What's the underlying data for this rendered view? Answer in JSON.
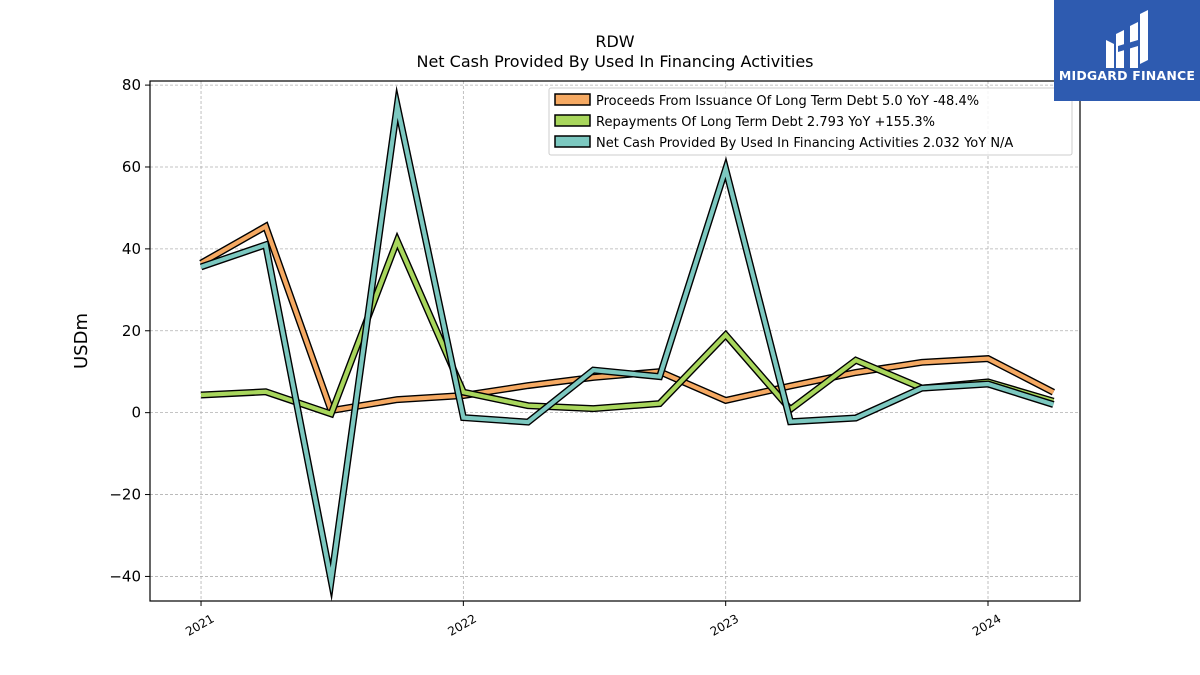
{
  "header": {
    "ticker": "RDW",
    "subtitle": "Net Cash Provided By Used In Financing Activities"
  },
  "logo": {
    "text": "MIDGARD FINANCE",
    "color": "#2e5bb0"
  },
  "chart_data": {
    "type": "line",
    "title": "RDW",
    "subtitle": "Net Cash Provided By Used In Financing Activities",
    "ylabel": "USDm",
    "xlabel": "",
    "ylim": [
      -46,
      81
    ],
    "yticks": [
      -40,
      -20,
      0,
      20,
      40,
      60,
      80
    ],
    "ytick_labels": [
      "−40",
      "−20",
      "0",
      "20",
      "40",
      "60",
      "80"
    ],
    "xlim": [
      "2020-10-22",
      "2024-05-08"
    ],
    "xticks": [
      "2021-01-01",
      "2022-01-01",
      "2023-01-01",
      "2024-01-01"
    ],
    "xtick_labels": [
      "2021",
      "2022",
      "2023",
      "2024"
    ],
    "grid": true,
    "legend_position": "top-right",
    "x": [
      "2021-01-01",
      "2021-04-01",
      "2021-07-01",
      "2021-10-01",
      "2022-01-01",
      "2022-04-01",
      "2022-07-01",
      "2022-10-01",
      "2023-01-01",
      "2023-04-01",
      "2023-07-01",
      "2023-10-01",
      "2024-01-01",
      "2024-04-01"
    ],
    "series": [
      {
        "name": "Proceeds From Issuance Of Long Term Debt",
        "legend_label": "Proceeds From Issuance Of Long Term Debt  5.0 YoY -48.4%",
        "color": "#f5a962",
        "values": [
          36.5,
          45.5,
          0.5,
          3.2,
          4.2,
          6.6,
          8.6,
          10.0,
          3.0,
          6.5,
          9.8,
          12.3,
          13.2,
          5.0
        ]
      },
      {
        "name": "Repayments Of Long Term Debt",
        "legend_label": "Repayments Of Long Term Debt  2.793 YoY +155.3%",
        "color": "#a8d65c",
        "values": [
          4.3,
          5.1,
          -0.3,
          42.0,
          5.0,
          1.7,
          1.0,
          2.2,
          19.0,
          0.8,
          12.8,
          6.0,
          7.5,
          2.8
        ]
      },
      {
        "name": "Net Cash Provided By Used In Financing Activities",
        "legend_label": "Net Cash Provided By Used In Financing Activities  2.032 YoY N/A",
        "color": "#7cc8c0",
        "values": [
          35.6,
          41.0,
          -41.0,
          75.0,
          -1.2,
          -2.3,
          10.4,
          8.8,
          59.5,
          -2.2,
          -1.3,
          6.0,
          7.0,
          2.0
        ]
      }
    ]
  }
}
